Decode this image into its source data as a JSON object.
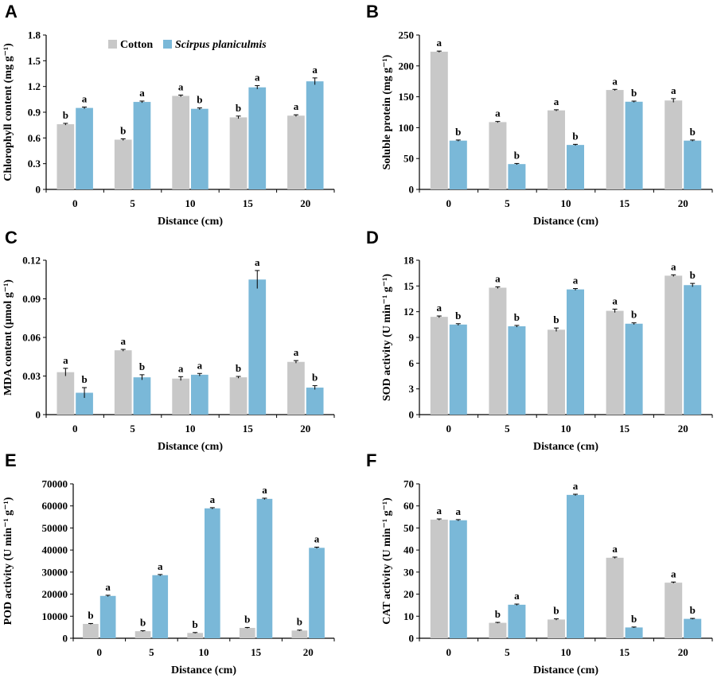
{
  "colors": {
    "cotton": "#c8c8c8",
    "scirpus": "#7ab8d8",
    "axis": "#000000"
  },
  "legend": {
    "series": [
      "Cotton",
      "Scirpus planiculmis"
    ]
  },
  "chart_data": [
    {
      "panel": "A",
      "type": "bar",
      "xlabel": "Distance (cm)",
      "ylabel": "Chlorophyll content (mg g⁻¹)",
      "categories": [
        "0",
        "5",
        "10",
        "15",
        "20"
      ],
      "ylim": [
        0,
        1.8
      ],
      "yticks": [
        0,
        0.3,
        0.6,
        0.9,
        1.2,
        1.5,
        1.8
      ],
      "ytick_labels": [
        "0",
        "0.3",
        "0.6",
        "0.9",
        "1.2",
        "1.5",
        "1.8"
      ],
      "series": [
        {
          "name": "Cotton",
          "values": [
            0.76,
            0.58,
            1.09,
            0.84,
            0.86
          ],
          "errors": [
            0.01,
            0.01,
            0.01,
            0.015,
            0.01
          ],
          "letters": [
            "b",
            "b",
            "a",
            "b",
            "a"
          ]
        },
        {
          "name": "Scirpus planiculmis",
          "values": [
            0.95,
            1.02,
            0.94,
            1.19,
            1.26
          ],
          "errors": [
            0.01,
            0.01,
            0.01,
            0.02,
            0.04
          ],
          "letters": [
            "a",
            "a",
            "b",
            "a",
            "a"
          ]
        }
      ]
    },
    {
      "panel": "B",
      "type": "bar",
      "xlabel": "Distance (cm)",
      "ylabel": "Soluble protein (mg g⁻¹)",
      "categories": [
        "0",
        "5",
        "10",
        "15",
        "20"
      ],
      "ylim": [
        0,
        250
      ],
      "yticks": [
        0,
        50,
        100,
        150,
        200,
        250
      ],
      "ytick_labels": [
        "0",
        "50",
        "100",
        "150",
        "200",
        "250"
      ],
      "series": [
        {
          "name": "Cotton",
          "values": [
            223,
            109,
            128,
            161,
            144
          ],
          "errors": [
            1,
            1,
            1,
            1,
            3
          ],
          "letters": [
            "a",
            "a",
            "a",
            "a",
            "a"
          ]
        },
        {
          "name": "Scirpus planiculmis",
          "values": [
            79,
            41,
            72,
            142,
            79
          ],
          "errors": [
            1,
            1,
            1,
            1,
            1
          ],
          "letters": [
            "b",
            "b",
            "b",
            "b",
            "b"
          ]
        }
      ]
    },
    {
      "panel": "C",
      "type": "bar",
      "xlabel": "Distance (cm)",
      "ylabel": "MDA content (μmol g⁻¹)",
      "categories": [
        "0",
        "5",
        "10",
        "15",
        "20"
      ],
      "ylim": [
        0,
        0.12
      ],
      "yticks": [
        0,
        0.03,
        0.06,
        0.09,
        0.12
      ],
      "ytick_labels": [
        "0",
        "0.03",
        "0.06",
        "0.09",
        "0.12"
      ],
      "series": [
        {
          "name": "Cotton",
          "values": [
            0.033,
            0.05,
            0.028,
            0.029,
            0.041
          ],
          "errors": [
            0.003,
            0.0007,
            0.0015,
            0.0007,
            0.001
          ],
          "letters": [
            "a",
            "a",
            "a",
            "b",
            "a"
          ]
        },
        {
          "name": "Scirpus planiculmis",
          "values": [
            0.017,
            0.029,
            0.031,
            0.105,
            0.021
          ],
          "errors": [
            0.004,
            0.002,
            0.001,
            0.007,
            0.0015
          ],
          "letters": [
            "b",
            "b",
            "a",
            "a",
            "b"
          ]
        }
      ]
    },
    {
      "panel": "D",
      "type": "bar",
      "xlabel": "Distance (cm)",
      "ylabel": "SOD activity (U min⁻¹ g⁻¹)",
      "categories": [
        "0",
        "5",
        "10",
        "15",
        "20"
      ],
      "ylim": [
        0,
        18
      ],
      "yticks": [
        0,
        3,
        6,
        9,
        12,
        15,
        18
      ],
      "ytick_labels": [
        "0",
        "3",
        "6",
        "9",
        "12",
        "15",
        "18"
      ],
      "series": [
        {
          "name": "Cotton",
          "values": [
            11.4,
            14.8,
            9.9,
            12.1,
            16.2
          ],
          "errors": [
            0.1,
            0.1,
            0.2,
            0.2,
            0.1
          ],
          "letters": [
            "a",
            "a",
            "b",
            "a",
            "a"
          ]
        },
        {
          "name": "Scirpus planiculmis",
          "values": [
            10.5,
            10.3,
            14.6,
            10.6,
            15.1
          ],
          "errors": [
            0.1,
            0.1,
            0.1,
            0.1,
            0.2
          ],
          "letters": [
            "b",
            "b",
            "a",
            "b",
            "b"
          ]
        }
      ]
    },
    {
      "panel": "E",
      "type": "bar",
      "xlabel": "Distance (cm)",
      "ylabel": "POD activity (U min⁻¹ g⁻¹)",
      "categories": [
        "0",
        "5",
        "10",
        "15",
        "20"
      ],
      "ylim": [
        0,
        70000
      ],
      "yticks": [
        0,
        10000,
        20000,
        30000,
        40000,
        50000,
        60000,
        70000
      ],
      "ytick_labels": [
        "0",
        "10000",
        "20000",
        "30000",
        "40000",
        "50000",
        "60000",
        "70000"
      ],
      "series": [
        {
          "name": "Cotton",
          "values": [
            6500,
            3200,
            2400,
            4700,
            3500
          ],
          "errors": [
            200,
            200,
            200,
            200,
            200
          ],
          "letters": [
            "b",
            "b",
            "b",
            "b",
            "b"
          ]
        },
        {
          "name": "Scirpus planiculmis",
          "values": [
            19200,
            28600,
            58900,
            63200,
            41000
          ],
          "errors": [
            300,
            300,
            300,
            300,
            300
          ],
          "letters": [
            "a",
            "a",
            "a",
            "a",
            "a"
          ]
        }
      ]
    },
    {
      "panel": "F",
      "type": "bar",
      "xlabel": "Distance (cm)",
      "ylabel": "CAT activity (U min⁻¹ g⁻¹)",
      "categories": [
        "0",
        "5",
        "10",
        "15",
        "20"
      ],
      "ylim": [
        0,
        70
      ],
      "yticks": [
        0,
        10,
        20,
        30,
        40,
        50,
        60,
        70
      ],
      "ytick_labels": [
        "0",
        "10",
        "20",
        "30",
        "40",
        "50",
        "60",
        "70"
      ],
      "series": [
        {
          "name": "Cotton",
          "values": [
            53.8,
            7,
            8.5,
            36.5,
            25.2
          ],
          "errors": [
            0.3,
            0.2,
            0.3,
            0.3,
            0.3
          ],
          "letters": [
            "a",
            "b",
            "b",
            "a",
            "a"
          ]
        },
        {
          "name": "Scirpus planiculmis",
          "values": [
            53.5,
            15.2,
            65,
            4.9,
            8.8
          ],
          "errors": [
            0.3,
            0.3,
            0.3,
            0.2,
            0.2
          ],
          "letters": [
            "a",
            "a",
            "a",
            "b",
            "b"
          ]
        }
      ]
    }
  ]
}
